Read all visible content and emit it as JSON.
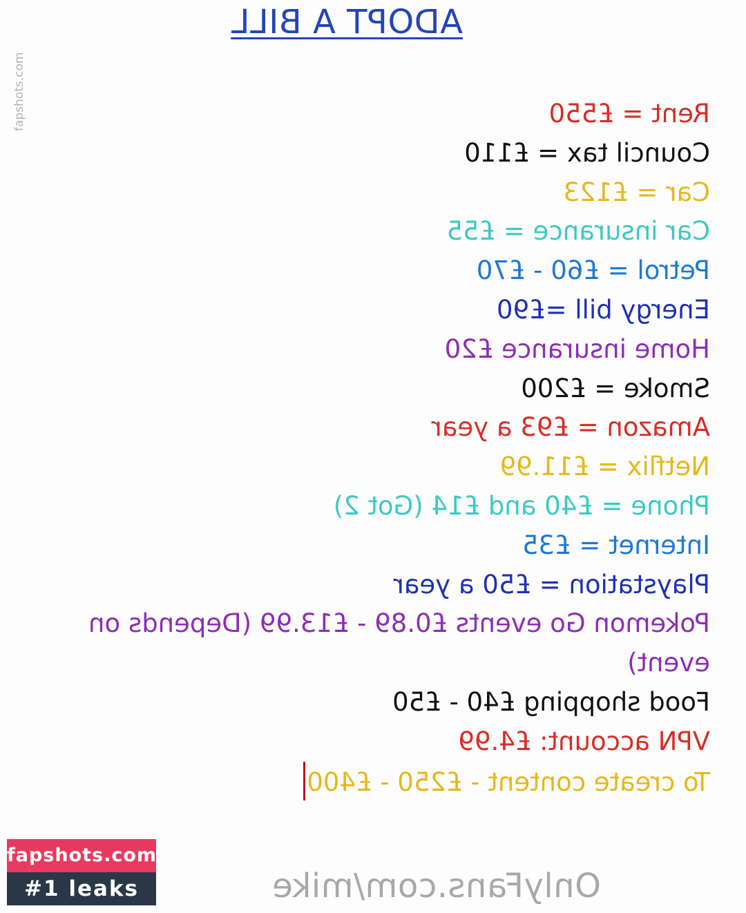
{
  "document": {
    "title": "ADOPT A BILL",
    "items": [
      {
        "text": "Rent = £550",
        "color": "#d92d27"
      },
      {
        "text": "Council tax = £110",
        "color": "#111111"
      },
      {
        "text": "Car = £123",
        "color": "#e6b81d"
      },
      {
        "text": "Car insurance = £55",
        "color": "#3dc9c1"
      },
      {
        "text": "Petrol = £60 - £70",
        "color": "#1e78d6"
      },
      {
        "text": "Energy bill =£90",
        "color": "#1f30b5"
      },
      {
        "text": "Home insurance £20",
        "color": "#8d2db8"
      },
      {
        "text": "Smoke = £200",
        "color": "#111111"
      },
      {
        "text": "Amazon = £93 a year",
        "color": "#d92d27"
      },
      {
        "text": "Netflix = £11.99",
        "color": "#e6b81d"
      },
      {
        "text": "Phone = £40 and £14 (Got 2)",
        "color": "#3dc9c1"
      },
      {
        "text": "Internet = £35",
        "color": "#1e78d6"
      },
      {
        "text": "Playstation = £50 a year",
        "color": "#1f30b5"
      },
      {
        "text": "Pokemon Go events £0.89 - £13.99 (Depends on event)",
        "color": "#8d2db8",
        "wrap": true
      },
      {
        "text": "Food shopping £40 - £50",
        "color": "#111111"
      },
      {
        "text": "VPN account: £4.99",
        "color": "#d92d27"
      },
      {
        "text": "To create content - £250 - £400",
        "color": "#e6b81d",
        "cursor": true
      }
    ]
  },
  "watermarks": {
    "side_text": "fapshots.com",
    "onlyfans": "OnlyFans.com/mike",
    "badge_site": "fapshots.com",
    "badge_tag": "#1 leaks"
  },
  "colors": {
    "title": "#2345b8",
    "cursor": "#c0121b",
    "badge_site_bg": "#e83a5f",
    "badge_tag_bg": "#2b3646"
  }
}
